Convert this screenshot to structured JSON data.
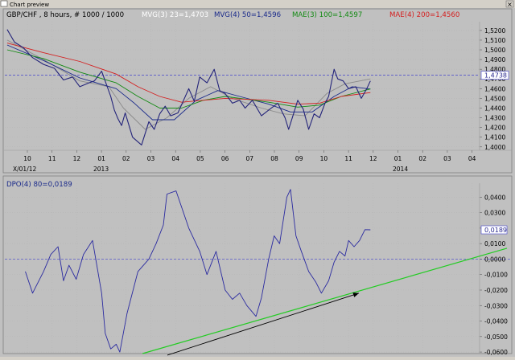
{
  "window": {
    "title": "Chart preview",
    "close_glyph": "×"
  },
  "colors": {
    "background": "#c0c0c0",
    "price": "#24247a",
    "mvg3": "#8a8a8a",
    "mvg4": "#1a2a8a",
    "mae3": "#138a13",
    "mae4": "#d42020",
    "dpo": "#2a2aa0",
    "reference": "#4444cc",
    "trend": "#22cc22",
    "arrow": "#000000"
  },
  "chart_data": [
    {
      "type": "line",
      "title": "GBP/CHF , 8 hours, # 1000 / 1000",
      "legend": [
        {
          "label": "MVG(3) 23=1,4703",
          "color": "#ffffff"
        },
        {
          "label": "MVG(4) 50=1,4596",
          "color": "#1a2a8a"
        },
        {
          "label": "MAE(3) 100=1,4597",
          "color": "#138a13"
        },
        {
          "label": "MAE(4) 200=1,4560",
          "color": "#d42020"
        }
      ],
      "ylim": [
        1.3965,
        1.529
      ],
      "yticks": [
        "1,5200",
        "1,5100",
        "1,5000",
        "1,4900",
        "1,4800",
        "1,4700",
        "1,4600",
        "1,4500",
        "1,4400",
        "1,4300",
        "1,4200",
        "1,4100",
        "1,4000"
      ],
      "ytick_values": [
        1.52,
        1.51,
        1.5,
        1.49,
        1.48,
        1.47,
        1.46,
        1.45,
        1.44,
        1.43,
        1.42,
        1.41,
        1.4
      ],
      "price_label": "1,4738",
      "price_value": 1.4738,
      "xticks": [
        "10",
        "11",
        "12",
        "01",
        "02",
        "03",
        "04",
        "05",
        "06",
        "07",
        "08",
        "09",
        "10",
        "11",
        "12",
        "01",
        "02",
        "03",
        "04"
      ],
      "year_labels": [
        "X/01/12",
        "2013",
        "2014"
      ],
      "series": [
        {
          "name": "GBP/CHF",
          "key": "price",
          "x": [
            0,
            0.02,
            0.045,
            0.07,
            0.1,
            0.13,
            0.155,
            0.18,
            0.2,
            0.225,
            0.24,
            0.26,
            0.285,
            0.295,
            0.305,
            0.315,
            0.325,
            0.345,
            0.37,
            0.39,
            0.405,
            0.42,
            0.435,
            0.45,
            0.47,
            0.5,
            0.515,
            0.53,
            0.55,
            0.57,
            0.585,
            0.6,
            0.62,
            0.64,
            0.655,
            0.675,
            0.7,
            0.72,
            0.745,
            0.765,
            0.775,
            0.79,
            0.8,
            0.815,
            0.83,
            0.845,
            0.86,
            0.875,
            0.885,
            0.9,
            0.91,
            0.925,
            0.94,
            0.96,
            0.975,
            0.99,
            1.0
          ],
          "values": [
            1.521,
            1.508,
            1.502,
            1.492,
            1.485,
            1.481,
            1.469,
            1.472,
            1.462,
            1.466,
            1.468,
            1.478,
            1.452,
            1.438,
            1.429,
            1.422,
            1.435,
            1.41,
            1.402,
            1.426,
            1.418,
            1.434,
            1.442,
            1.432,
            1.435,
            1.46,
            1.447,
            1.472,
            1.466,
            1.48,
            1.458,
            1.455,
            1.445,
            1.448,
            1.44,
            1.448,
            1.432,
            1.438,
            1.445,
            1.43,
            1.418,
            1.436,
            1.448,
            1.439,
            1.418,
            1.434,
            1.43,
            1.445,
            1.452,
            1.48,
            1.47,
            1.468,
            1.46,
            1.462,
            1.45,
            1.46,
            1.468
          ]
        },
        {
          "name": "MVG(3) 23",
          "key": "mvg3",
          "x": [
            0,
            0.1,
            0.2,
            0.28,
            0.32,
            0.38,
            0.44,
            0.5,
            0.56,
            0.62,
            0.7,
            0.76,
            0.82,
            0.88,
            0.93,
            1.0
          ],
          "values": [
            1.51,
            1.49,
            1.468,
            1.462,
            1.44,
            1.418,
            1.43,
            1.45,
            1.462,
            1.45,
            1.44,
            1.434,
            1.432,
            1.455,
            1.465,
            1.47
          ]
        },
        {
          "name": "MVG(4) 50",
          "key": "mvg4",
          "x": [
            0,
            0.1,
            0.2,
            0.3,
            0.35,
            0.4,
            0.46,
            0.52,
            0.58,
            0.64,
            0.72,
            0.78,
            0.84,
            0.9,
            0.95,
            1.0
          ],
          "values": [
            1.505,
            1.489,
            1.471,
            1.46,
            1.445,
            1.428,
            1.428,
            1.448,
            1.458,
            1.452,
            1.444,
            1.436,
            1.436,
            1.452,
            1.462,
            1.4596
          ]
        },
        {
          "name": "MAE(3) 100",
          "key": "mae3",
          "x": [
            0,
            0.1,
            0.2,
            0.3,
            0.36,
            0.42,
            0.48,
            0.54,
            0.6,
            0.66,
            0.72,
            0.8,
            0.86,
            0.92,
            1.0
          ],
          "values": [
            1.5,
            1.491,
            1.477,
            1.466,
            1.452,
            1.44,
            1.44,
            1.448,
            1.452,
            1.449,
            1.446,
            1.441,
            1.443,
            1.452,
            1.4597
          ]
        },
        {
          "name": "MAE(4) 200",
          "key": "mae4",
          "x": [
            0,
            0.1,
            0.2,
            0.3,
            0.36,
            0.42,
            0.48,
            0.54,
            0.6,
            0.66,
            0.72,
            0.8,
            0.86,
            0.92,
            1.0
          ],
          "values": [
            1.507,
            1.497,
            1.488,
            1.475,
            1.462,
            1.452,
            1.446,
            1.448,
            1.45,
            1.449,
            1.448,
            1.444,
            1.445,
            1.452,
            1.456
          ]
        }
      ]
    },
    {
      "type": "line",
      "title": "DPO(4) 80=0,0189",
      "ylim": [
        -0.061,
        0.049
      ],
      "yticks": [
        "0,0400",
        "0,0300",
        "0,0200",
        "0,0100",
        "0,0000",
        "-0,0100",
        "-0,0200",
        "-0,0300",
        "-0,0400",
        "-0,0500",
        "-0,0600"
      ],
      "ytick_values": [
        0.04,
        0.03,
        0.02,
        0.01,
        0.0,
        -0.01,
        -0.02,
        -0.03,
        -0.04,
        -0.05,
        -0.06
      ],
      "value_label": "0,0189",
      "series": [
        {
          "name": "DPO(4) 80",
          "key": "dpo",
          "x": [
            0.05,
            0.07,
            0.1,
            0.12,
            0.14,
            0.155,
            0.17,
            0.19,
            0.21,
            0.235,
            0.26,
            0.27,
            0.285,
            0.3,
            0.31,
            0.33,
            0.36,
            0.39,
            0.41,
            0.43,
            0.44,
            0.465,
            0.5,
            0.53,
            0.55,
            0.575,
            0.6,
            0.62,
            0.64,
            0.66,
            0.685,
            0.7,
            0.72,
            0.735,
            0.75,
            0.77,
            0.78,
            0.795,
            0.81,
            0.83,
            0.85,
            0.865,
            0.885,
            0.9,
            0.915,
            0.93,
            0.94,
            0.955,
            0.97,
            0.985,
            1.0
          ],
          "values": [
            -0.008,
            -0.022,
            -0.008,
            0.003,
            0.008,
            -0.014,
            -0.004,
            -0.013,
            0.003,
            0.012,
            -0.022,
            -0.048,
            -0.058,
            -0.055,
            -0.06,
            -0.035,
            -0.008,
            0.0,
            0.01,
            0.022,
            0.042,
            0.044,
            0.02,
            0.005,
            -0.01,
            0.005,
            -0.02,
            -0.026,
            -0.022,
            -0.03,
            -0.037,
            -0.025,
            0.0,
            0.015,
            0.01,
            0.04,
            0.045,
            0.015,
            0.005,
            -0.008,
            -0.015,
            -0.022,
            -0.014,
            -0.002,
            0.005,
            0.002,
            0.012,
            0.008,
            0.012,
            0.019,
            0.0189
          ]
        }
      ],
      "reference_line": 0.0,
      "trendline": {
        "x": [
          0.0,
          1.0
        ],
        "values": [
          -0.061,
          0.007
        ]
      },
      "arrow": {
        "x": [
          0.0,
          0.63
        ],
        "values": [
          -0.062,
          -0.022
        ]
      }
    }
  ]
}
